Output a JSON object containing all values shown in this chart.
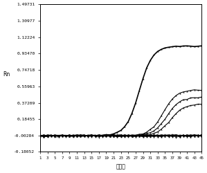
{
  "title": "",
  "xlabel": "循环数",
  "ylabel": "Rn",
  "xlim": [
    1,
    45
  ],
  "ylim": [
    -0.18052,
    1.49731
  ],
  "yticks": [
    1.49731,
    1.30977,
    1.12224,
    0.9347,
    0.74718,
    0.55963,
    0.37209,
    0.18455,
    -0.00284,
    -0.18052
  ],
  "xticks": [
    1,
    3,
    5,
    7,
    9,
    11,
    13,
    15,
    17,
    19,
    21,
    23,
    25,
    27,
    29,
    31,
    33,
    35,
    37,
    39,
    41,
    43,
    45
  ],
  "background_color": "#ffffff",
  "line_color": "#000000",
  "sigmoid_midpoint_main": 28.0,
  "sigmoid_steepness_main": 0.55,
  "sigmoid_max_main": 1.02,
  "sigmoid_midpoint_low1": 34.5,
  "sigmoid_steepness_low1": 0.55,
  "sigmoid_max_low1": 0.52,
  "sigmoid_midpoint_low2": 35.5,
  "sigmoid_steepness_low2": 0.55,
  "sigmoid_max_low2": 0.44,
  "sigmoid_midpoint_low3": 36.5,
  "sigmoid_steepness_low3": 0.55,
  "sigmoid_max_low3": 0.36,
  "noise_amplitude": 0.008,
  "baseline": -0.00284
}
